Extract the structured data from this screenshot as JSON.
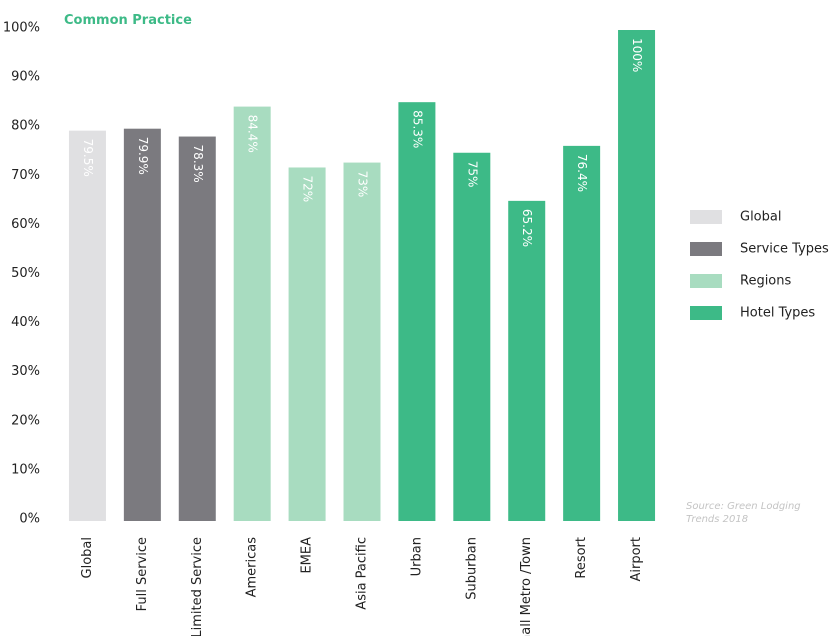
{
  "chart_data": {
    "type": "bar",
    "title": "Common Practice",
    "categories": [
      "Global",
      "Full Service",
      "Limited Service",
      "Americas",
      "EMEA",
      "Asia Pacific",
      "Urban",
      "Suburban",
      "Small Metro /Town",
      "Resort",
      "Airport"
    ],
    "values": [
      79.5,
      79.9,
      78.3,
      84.4,
      72,
      73,
      85.3,
      75,
      65.2,
      76.4,
      100
    ],
    "value_labels": [
      "79.5%",
      "79.9%",
      "78.3%",
      "84.4%",
      "72%",
      "73%",
      "85.3%",
      "75%",
      "65.2%",
      "76.4%",
      "100%"
    ],
    "colors": [
      "#e0e0e2",
      "#7b7a7f",
      "#7b7a7f",
      "#a8dcc0",
      "#a8dcc0",
      "#a8dcc0",
      "#3dba87",
      "#3dba87",
      "#3dba87",
      "#3dba87",
      "#3dba87"
    ],
    "legend": [
      {
        "name": "Global",
        "color": "#e0e0e2"
      },
      {
        "name": "Service Types",
        "color": "#7b7a7f"
      },
      {
        "name": "Regions",
        "color": "#a8dcc0"
      },
      {
        "name": "Hotel Types",
        "color": "#3dba87"
      }
    ],
    "ylim": [
      0,
      100
    ],
    "yticks": [
      {
        "value": 0,
        "label": "0%"
      },
      {
        "value": 10,
        "label": "10%"
      },
      {
        "value": 20,
        "label": "20%"
      },
      {
        "value": 30,
        "label": "30%"
      },
      {
        "value": 40,
        "label": "40%"
      },
      {
        "value": 50,
        "label": "50%"
      },
      {
        "value": 60,
        "label": "60%"
      },
      {
        "value": 70,
        "label": "70%"
      },
      {
        "value": 80,
        "label": "80%"
      },
      {
        "value": 90,
        "label": "90%"
      },
      {
        "value": 100,
        "label": "100%"
      }
    ],
    "grid": false,
    "annotation": "Source: Green Lodging Trends 2018"
  }
}
